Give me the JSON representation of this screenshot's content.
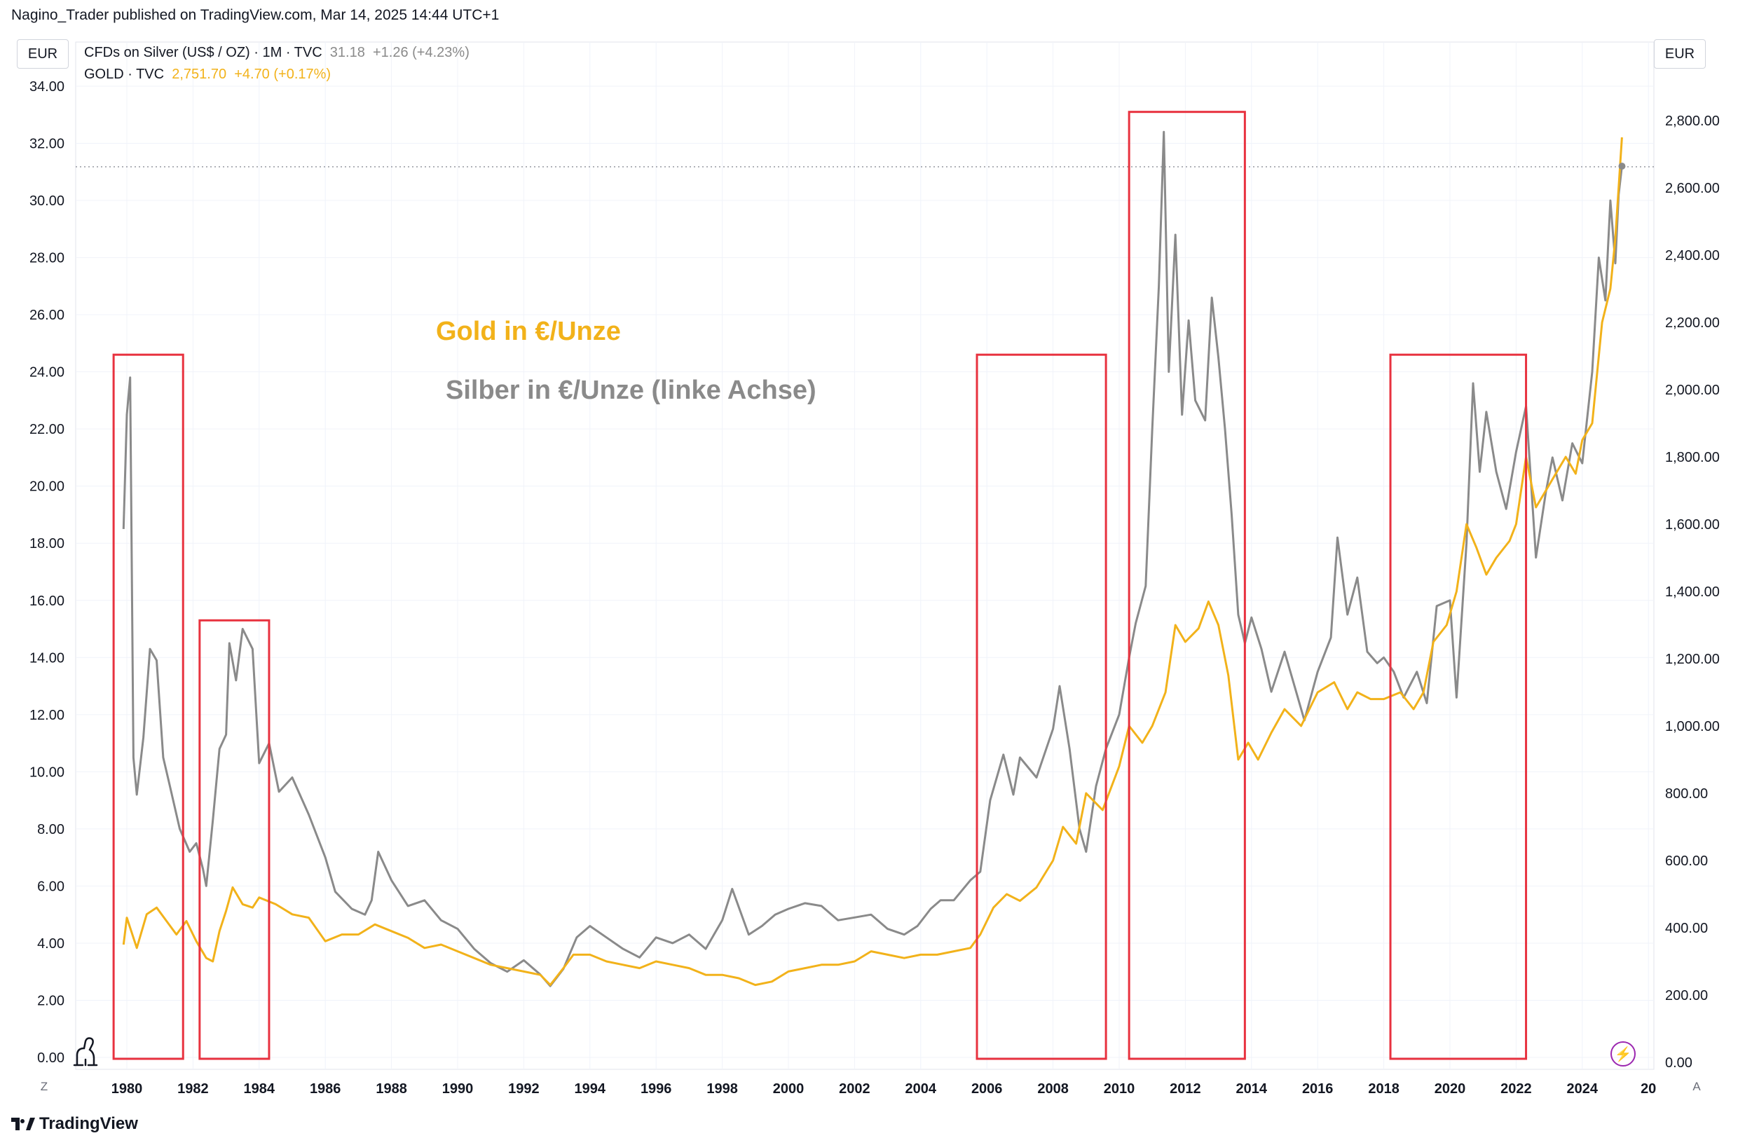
{
  "attribution": "Nagino_Trader published on TradingView.com, Mar 14, 2025 14:44 UTC+1",
  "left_unit": "EUR",
  "right_unit": "EUR",
  "legend": {
    "silver": {
      "symbol": "CFDs on Silver (US$ / OZ) · 1M · TVC",
      "price": "31.18",
      "change": "+1.26 (+4.23%)"
    },
    "gold": {
      "symbol": "GOLD · TVC",
      "price": "2,751.70",
      "change": "+4.70 (+0.17%)"
    }
  },
  "annotations": {
    "gold": "Gold in €/Unze",
    "silver": "Silber in €/Unze (linke Achse)"
  },
  "corner_left": "Z",
  "corner_right": "A",
  "footer_brand": "TradingView",
  "colors": {
    "silver": "#8a8a8a",
    "gold": "#f2b21a",
    "box": "#e8323f",
    "grid": "#f0f3fa"
  },
  "icons": [
    "tradingview-dino-icon",
    "lightning-icon",
    "tradingview-logo-icon"
  ],
  "chart_data": {
    "type": "line",
    "x_ticks": [
      "1980",
      "1982",
      "1984",
      "1986",
      "1988",
      "1990",
      "1992",
      "1994",
      "1996",
      "1998",
      "2000",
      "2002",
      "2004",
      "2006",
      "2008",
      "2010",
      "2012",
      "2014",
      "2016",
      "2018",
      "2020",
      "2022",
      "2024",
      "20"
    ],
    "left_axis": {
      "label": "EUR",
      "ticks": [
        "0.00",
        "2.00",
        "4.00",
        "6.00",
        "8.00",
        "10.00",
        "12.00",
        "14.00",
        "16.00",
        "18.00",
        "20.00",
        "22.00",
        "24.00",
        "26.00",
        "28.00",
        "30.00",
        "32.00",
        "34.00"
      ],
      "range": [
        0,
        34
      ]
    },
    "right_axis": {
      "label": "EUR",
      "ticks": [
        "0.00",
        "200.00",
        "400.00",
        "600.00",
        "800.00",
        "1,000.00",
        "1,200.00",
        "1,400.00",
        "1,600.00",
        "1,800.00",
        "2,000.00",
        "2,200.00",
        "2,400.00",
        "2,600.00",
        "2,800.00"
      ],
      "range": [
        0,
        2900
      ]
    },
    "series": [
      {
        "name": "CFDs on Silver (US$ / OZ)",
        "axis": "left",
        "color": "#8a8a8a",
        "points": [
          [
            1979.9,
            18.5
          ],
          [
            1980.0,
            22.5
          ],
          [
            1980.1,
            23.8
          ],
          [
            1980.2,
            10.5
          ],
          [
            1980.3,
            9.2
          ],
          [
            1980.5,
            11.2
          ],
          [
            1980.7,
            14.3
          ],
          [
            1980.9,
            13.9
          ],
          [
            1981.1,
            10.5
          ],
          [
            1981.3,
            9.5
          ],
          [
            1981.6,
            8.0
          ],
          [
            1981.9,
            7.2
          ],
          [
            1982.1,
            7.5
          ],
          [
            1982.3,
            6.6
          ],
          [
            1982.4,
            6.0
          ],
          [
            1982.6,
            8.3
          ],
          [
            1982.8,
            10.8
          ],
          [
            1983.0,
            11.3
          ],
          [
            1983.1,
            14.5
          ],
          [
            1983.3,
            13.2
          ],
          [
            1983.5,
            15.0
          ],
          [
            1983.8,
            14.3
          ],
          [
            1984.0,
            10.3
          ],
          [
            1984.3,
            11.0
          ],
          [
            1984.6,
            9.3
          ],
          [
            1985.0,
            9.8
          ],
          [
            1985.5,
            8.5
          ],
          [
            1986.0,
            7.0
          ],
          [
            1986.3,
            5.8
          ],
          [
            1986.8,
            5.2
          ],
          [
            1987.2,
            5.0
          ],
          [
            1987.4,
            5.5
          ],
          [
            1987.6,
            7.2
          ],
          [
            1988.0,
            6.2
          ],
          [
            1988.5,
            5.3
          ],
          [
            1989.0,
            5.5
          ],
          [
            1989.5,
            4.8
          ],
          [
            1990.0,
            4.5
          ],
          [
            1990.5,
            3.8
          ],
          [
            1991.0,
            3.3
          ],
          [
            1991.5,
            3.0
          ],
          [
            1992.0,
            3.4
          ],
          [
            1992.5,
            2.9
          ],
          [
            1992.8,
            2.5
          ],
          [
            1993.2,
            3.1
          ],
          [
            1993.6,
            4.2
          ],
          [
            1994.0,
            4.6
          ],
          [
            1994.5,
            4.2
          ],
          [
            1995.0,
            3.8
          ],
          [
            1995.5,
            3.5
          ],
          [
            1996.0,
            4.2
          ],
          [
            1996.5,
            4.0
          ],
          [
            1997.0,
            4.3
          ],
          [
            1997.5,
            3.8
          ],
          [
            1998.0,
            4.8
          ],
          [
            1998.3,
            5.9
          ],
          [
            1998.8,
            4.3
          ],
          [
            1999.2,
            4.6
          ],
          [
            1999.6,
            5.0
          ],
          [
            2000.0,
            5.2
          ],
          [
            2000.5,
            5.4
          ],
          [
            2001.0,
            5.3
          ],
          [
            2001.5,
            4.8
          ],
          [
            2002.0,
            4.9
          ],
          [
            2002.5,
            5.0
          ],
          [
            2003.0,
            4.5
          ],
          [
            2003.5,
            4.3
          ],
          [
            2003.9,
            4.6
          ],
          [
            2004.3,
            5.2
          ],
          [
            2004.6,
            5.5
          ],
          [
            2005.0,
            5.5
          ],
          [
            2005.5,
            6.2
          ],
          [
            2005.8,
            6.5
          ],
          [
            2006.1,
            9.0
          ],
          [
            2006.5,
            10.6
          ],
          [
            2006.8,
            9.2
          ],
          [
            2007.0,
            10.5
          ],
          [
            2007.5,
            9.8
          ],
          [
            2008.0,
            11.5
          ],
          [
            2008.2,
            13.0
          ],
          [
            2008.5,
            10.8
          ],
          [
            2008.8,
            8.0
          ],
          [
            2009.0,
            7.2
          ],
          [
            2009.3,
            9.5
          ],
          [
            2009.6,
            10.8
          ],
          [
            2010.0,
            12.0
          ],
          [
            2010.3,
            14.0
          ],
          [
            2010.5,
            15.2
          ],
          [
            2010.8,
            16.5
          ],
          [
            2011.0,
            22.0
          ],
          [
            2011.2,
            27.0
          ],
          [
            2011.35,
            32.4
          ],
          [
            2011.5,
            24.0
          ],
          [
            2011.7,
            28.8
          ],
          [
            2011.9,
            22.5
          ],
          [
            2012.1,
            25.8
          ],
          [
            2012.3,
            23.0
          ],
          [
            2012.6,
            22.3
          ],
          [
            2012.8,
            26.6
          ],
          [
            2013.0,
            24.5
          ],
          [
            2013.2,
            22.0
          ],
          [
            2013.4,
            19.0
          ],
          [
            2013.6,
            15.5
          ],
          [
            2013.8,
            14.5
          ],
          [
            2014.0,
            15.4
          ],
          [
            2014.3,
            14.3
          ],
          [
            2014.6,
            12.8
          ],
          [
            2015.0,
            14.2
          ],
          [
            2015.3,
            13.0
          ],
          [
            2015.6,
            11.8
          ],
          [
            2016.0,
            13.5
          ],
          [
            2016.4,
            14.7
          ],
          [
            2016.6,
            18.2
          ],
          [
            2016.9,
            15.5
          ],
          [
            2017.2,
            16.8
          ],
          [
            2017.5,
            14.2
          ],
          [
            2017.8,
            13.8
          ],
          [
            2018.0,
            14.0
          ],
          [
            2018.3,
            13.5
          ],
          [
            2018.6,
            12.6
          ],
          [
            2019.0,
            13.5
          ],
          [
            2019.3,
            12.4
          ],
          [
            2019.6,
            15.8
          ],
          [
            2020.0,
            16.0
          ],
          [
            2020.2,
            12.6
          ],
          [
            2020.5,
            18.0
          ],
          [
            2020.7,
            23.6
          ],
          [
            2020.9,
            20.5
          ],
          [
            2021.1,
            22.6
          ],
          [
            2021.4,
            20.5
          ],
          [
            2021.7,
            19.2
          ],
          [
            2022.0,
            21.2
          ],
          [
            2022.3,
            22.8
          ],
          [
            2022.6,
            17.5
          ],
          [
            2022.9,
            19.8
          ],
          [
            2023.1,
            21.0
          ],
          [
            2023.4,
            19.5
          ],
          [
            2023.7,
            21.5
          ],
          [
            2024.0,
            20.8
          ],
          [
            2024.3,
            24.0
          ],
          [
            2024.5,
            28.0
          ],
          [
            2024.7,
            26.5
          ],
          [
            2024.85,
            30.0
          ],
          [
            2025.0,
            27.8
          ],
          [
            2025.1,
            30.2
          ],
          [
            2025.2,
            31.2
          ]
        ]
      },
      {
        "name": "GOLD",
        "axis": "right",
        "color": "#f2b21a",
        "points": [
          [
            1979.9,
            350
          ],
          [
            1980.0,
            430
          ],
          [
            1980.3,
            340
          ],
          [
            1980.6,
            440
          ],
          [
            1980.9,
            460
          ],
          [
            1981.2,
            420
          ],
          [
            1981.5,
            380
          ],
          [
            1981.8,
            420
          ],
          [
            1982.1,
            360
          ],
          [
            1982.4,
            310
          ],
          [
            1982.6,
            300
          ],
          [
            1982.8,
            390
          ],
          [
            1983.0,
            450
          ],
          [
            1983.2,
            520
          ],
          [
            1983.5,
            470
          ],
          [
            1983.8,
            460
          ],
          [
            1984.0,
            490
          ],
          [
            1984.5,
            470
          ],
          [
            1985.0,
            440
          ],
          [
            1985.5,
            430
          ],
          [
            1986.0,
            360
          ],
          [
            1986.5,
            380
          ],
          [
            1987.0,
            380
          ],
          [
            1987.5,
            410
          ],
          [
            1988.0,
            390
          ],
          [
            1988.5,
            370
          ],
          [
            1989.0,
            340
          ],
          [
            1989.5,
            350
          ],
          [
            1990.0,
            330
          ],
          [
            1990.5,
            310
          ],
          [
            1991.0,
            290
          ],
          [
            1991.5,
            280
          ],
          [
            1992.0,
            270
          ],
          [
            1992.5,
            260
          ],
          [
            1992.8,
            230
          ],
          [
            1993.2,
            280
          ],
          [
            1993.5,
            320
          ],
          [
            1994.0,
            320
          ],
          [
            1994.5,
            300
          ],
          [
            1995.0,
            290
          ],
          [
            1995.5,
            280
          ],
          [
            1996.0,
            300
          ],
          [
            1996.5,
            290
          ],
          [
            1997.0,
            280
          ],
          [
            1997.5,
            260
          ],
          [
            1998.0,
            260
          ],
          [
            1998.5,
            250
          ],
          [
            1999.0,
            230
          ],
          [
            1999.5,
            240
          ],
          [
            2000.0,
            270
          ],
          [
            2000.5,
            280
          ],
          [
            2001.0,
            290
          ],
          [
            2001.5,
            290
          ],
          [
            2002.0,
            300
          ],
          [
            2002.5,
            330
          ],
          [
            2003.0,
            320
          ],
          [
            2003.5,
            310
          ],
          [
            2004.0,
            320
          ],
          [
            2004.5,
            320
          ],
          [
            2005.0,
            330
          ],
          [
            2005.5,
            340
          ],
          [
            2005.8,
            380
          ],
          [
            2006.2,
            460
          ],
          [
            2006.6,
            500
          ],
          [
            2007.0,
            480
          ],
          [
            2007.5,
            520
          ],
          [
            2008.0,
            600
          ],
          [
            2008.3,
            700
          ],
          [
            2008.7,
            650
          ],
          [
            2009.0,
            800
          ],
          [
            2009.5,
            750
          ],
          [
            2010.0,
            880
          ],
          [
            2010.3,
            1000
          ],
          [
            2010.7,
            950
          ],
          [
            2011.0,
            1000
          ],
          [
            2011.4,
            1100
          ],
          [
            2011.7,
            1300
          ],
          [
            2012.0,
            1250
          ],
          [
            2012.4,
            1290
          ],
          [
            2012.7,
            1370
          ],
          [
            2013.0,
            1300
          ],
          [
            2013.3,
            1150
          ],
          [
            2013.6,
            900
          ],
          [
            2013.9,
            950
          ],
          [
            2014.2,
            900
          ],
          [
            2014.6,
            980
          ],
          [
            2015.0,
            1050
          ],
          [
            2015.5,
            1000
          ],
          [
            2016.0,
            1100
          ],
          [
            2016.5,
            1130
          ],
          [
            2016.9,
            1050
          ],
          [
            2017.2,
            1100
          ],
          [
            2017.6,
            1080
          ],
          [
            2018.0,
            1080
          ],
          [
            2018.5,
            1100
          ],
          [
            2018.9,
            1050
          ],
          [
            2019.2,
            1100
          ],
          [
            2019.5,
            1250
          ],
          [
            2019.9,
            1300
          ],
          [
            2020.2,
            1400
          ],
          [
            2020.5,
            1600
          ],
          [
            2020.8,
            1530
          ],
          [
            2021.1,
            1450
          ],
          [
            2021.4,
            1500
          ],
          [
            2021.8,
            1550
          ],
          [
            2022.0,
            1600
          ],
          [
            2022.3,
            1800
          ],
          [
            2022.6,
            1650
          ],
          [
            2022.9,
            1700
          ],
          [
            2023.2,
            1750
          ],
          [
            2023.5,
            1800
          ],
          [
            2023.8,
            1750
          ],
          [
            2024.0,
            1850
          ],
          [
            2024.3,
            1900
          ],
          [
            2024.6,
            2200
          ],
          [
            2024.85,
            2300
          ],
          [
            2025.0,
            2450
          ],
          [
            2025.1,
            2600
          ],
          [
            2025.2,
            2750
          ]
        ]
      }
    ],
    "boxes": [
      {
        "from": 1979.6,
        "to": 1981.7,
        "top": 24.6
      },
      {
        "from": 1982.2,
        "to": 1984.3,
        "top": 15.3
      },
      {
        "from": 2005.7,
        "to": 2009.6,
        "top": 24.6
      },
      {
        "from": 2010.3,
        "to": 2013.8,
        "top": 33.1
      },
      {
        "from": 2018.2,
        "to": 2022.3,
        "top": 24.6
      }
    ],
    "last_price_line": {
      "axis": "left",
      "value": 31.18
    },
    "grid": true
  }
}
